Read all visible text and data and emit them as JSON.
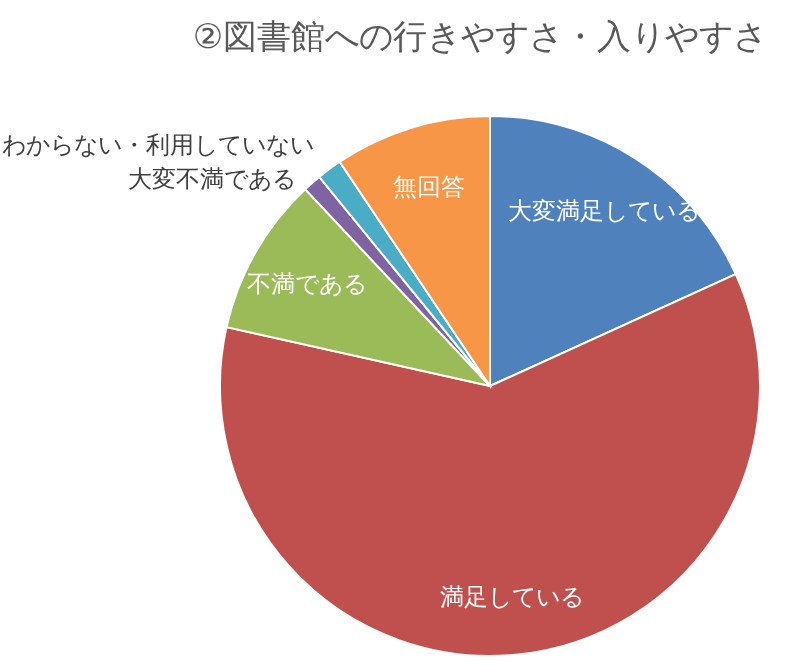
{
  "chart_data": {
    "type": "pie",
    "title": "②図書館への行きやすさ・入りやすさ",
    "categories": [
      "大変満足している",
      "満足している",
      "不満である",
      "大変不満である",
      "わからない・利用していない",
      "無回答"
    ],
    "values": [
      18.2,
      60.3,
      9.5,
      1.1,
      1.5,
      9.4
    ],
    "colors": [
      "#4f81bd",
      "#c0504d",
      "#9bbb59",
      "#8064a2",
      "#4bacc6",
      "#f79646"
    ]
  }
}
